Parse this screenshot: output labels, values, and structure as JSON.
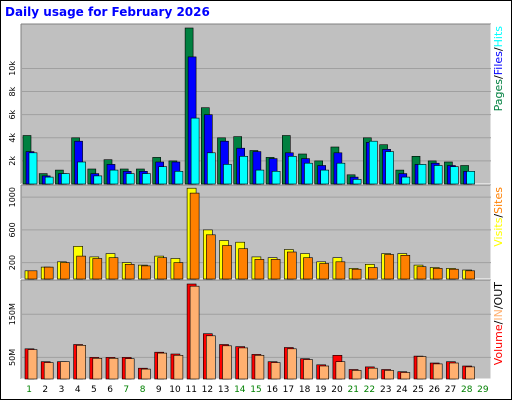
{
  "title": "Daily usage for February 2026",
  "colors": {
    "background": "#c0c0c0",
    "hits": "#008040",
    "files": "#0000ff",
    "pages": "#00ffff",
    "visits": "#ffff00",
    "sites": "#ff8000",
    "kbytes": "#ff0000",
    "kbytes_out": "#ffb070",
    "weekday_label": "#008000",
    "day_label": "#000000"
  },
  "chart_data": [
    {
      "type": "bar",
      "title": "Daily usage for February 2026",
      "panel": "hits-files-pages",
      "categories": [
        "1",
        "2",
        "3",
        "4",
        "5",
        "6",
        "7",
        "8",
        "9",
        "10",
        "11",
        "12",
        "13",
        "14",
        "15",
        "16",
        "17",
        "18",
        "19",
        "20",
        "21",
        "22",
        "23",
        "24",
        "25",
        "26",
        "27",
        "28",
        "29"
      ],
      "weekend_days": [
        "1",
        "7",
        "8",
        "14",
        "15",
        "21",
        "22",
        "28",
        "29"
      ],
      "tick_labels": [
        "2k",
        "4k",
        "6k",
        "8k",
        "10k"
      ],
      "ylim": [
        0,
        13500
      ],
      "legend_labels": [
        "Pages",
        "Files",
        "Hits"
      ],
      "legend_separators": [
        "/",
        "/"
      ],
      "legend_placement": "right",
      "series": [
        {
          "name": "Hits",
          "values": [
            4200,
            900,
            1200,
            4000,
            1300,
            2100,
            1300,
            1300,
            2300,
            2000,
            13500,
            6600,
            4000,
            4100,
            2900,
            2300,
            4200,
            2600,
            2000,
            3200,
            800,
            4000,
            3400,
            1200,
            2400,
            2000,
            1900,
            1600,
            0
          ]
        },
        {
          "name": "Files",
          "values": [
            2800,
            700,
            900,
            3700,
            900,
            1700,
            1100,
            1100,
            1900,
            1900,
            11000,
            6000,
            3700,
            3100,
            2800,
            2200,
            2700,
            2200,
            1600,
            2700,
            600,
            3600,
            3000,
            900,
            1700,
            1800,
            1600,
            1100,
            0
          ]
        },
        {
          "name": "Pages",
          "values": [
            2700,
            600,
            900,
            1900,
            700,
            1200,
            900,
            900,
            1500,
            1100,
            5700,
            2700,
            1700,
            2400,
            1200,
            1100,
            2400,
            1800,
            1200,
            1800,
            400,
            3700,
            2800,
            600,
            1700,
            1600,
            1500,
            1100,
            0
          ]
        }
      ]
    },
    {
      "type": "bar",
      "panel": "visits-sites",
      "categories": [
        "1",
        "2",
        "3",
        "4",
        "5",
        "6",
        "7",
        "8",
        "9",
        "10",
        "11",
        "12",
        "13",
        "14",
        "15",
        "16",
        "17",
        "18",
        "19",
        "20",
        "21",
        "22",
        "23",
        "24",
        "25",
        "26",
        "27",
        "28",
        "29"
      ],
      "tick_labels": [
        "200",
        "600",
        "1000"
      ],
      "ylim": [
        0,
        1100
      ],
      "legend_labels": [
        "Visits",
        "Sites"
      ],
      "legend_separators": [
        "/"
      ],
      "legend_placement": "right",
      "series": [
        {
          "name": "Visits",
          "values": [
            100,
            145,
            210,
            400,
            270,
            310,
            200,
            170,
            280,
            250,
            1110,
            600,
            470,
            450,
            270,
            260,
            360,
            310,
            210,
            260,
            130,
            180,
            310,
            310,
            170,
            140,
            130,
            110,
            0
          ]
        },
        {
          "name": "Sites",
          "values": [
            100,
            145,
            200,
            280,
            250,
            260,
            180,
            160,
            260,
            200,
            1050,
            540,
            410,
            370,
            240,
            240,
            330,
            260,
            190,
            210,
            120,
            140,
            300,
            290,
            150,
            130,
            120,
            100,
            0
          ]
        }
      ]
    },
    {
      "type": "bar",
      "panel": "volume",
      "categories": [
        "1",
        "2",
        "3",
        "4",
        "5",
        "6",
        "7",
        "8",
        "9",
        "10",
        "11",
        "12",
        "13",
        "14",
        "15",
        "16",
        "17",
        "18",
        "19",
        "20",
        "21",
        "22",
        "23",
        "24",
        "25",
        "26",
        "27",
        "28",
        "29"
      ],
      "tick_labels": [
        "50M",
        "150M"
      ],
      "ylim": [
        0,
        220
      ],
      "legend_labels": [
        "Volume",
        "IN",
        "OUT"
      ],
      "legend_separators": [
        "/",
        "/"
      ],
      "legend_placement": "right",
      "series": [
        {
          "name": "IN",
          "values": [
            70,
            40,
            40,
            80,
            50,
            50,
            50,
            25,
            62,
            58,
            220,
            105,
            80,
            75,
            57,
            40,
            73,
            47,
            33,
            55,
            22,
            28,
            22,
            17,
            53,
            37,
            40,
            30,
            0
          ]
        },
        {
          "name": "OUT",
          "values": [
            68,
            38,
            40,
            78,
            48,
            48,
            47,
            23,
            60,
            55,
            215,
            100,
            77,
            72,
            55,
            38,
            70,
            45,
            30,
            40,
            20,
            25,
            20,
            15,
            52,
            35,
            37,
            28,
            0
          ]
        }
      ]
    }
  ]
}
